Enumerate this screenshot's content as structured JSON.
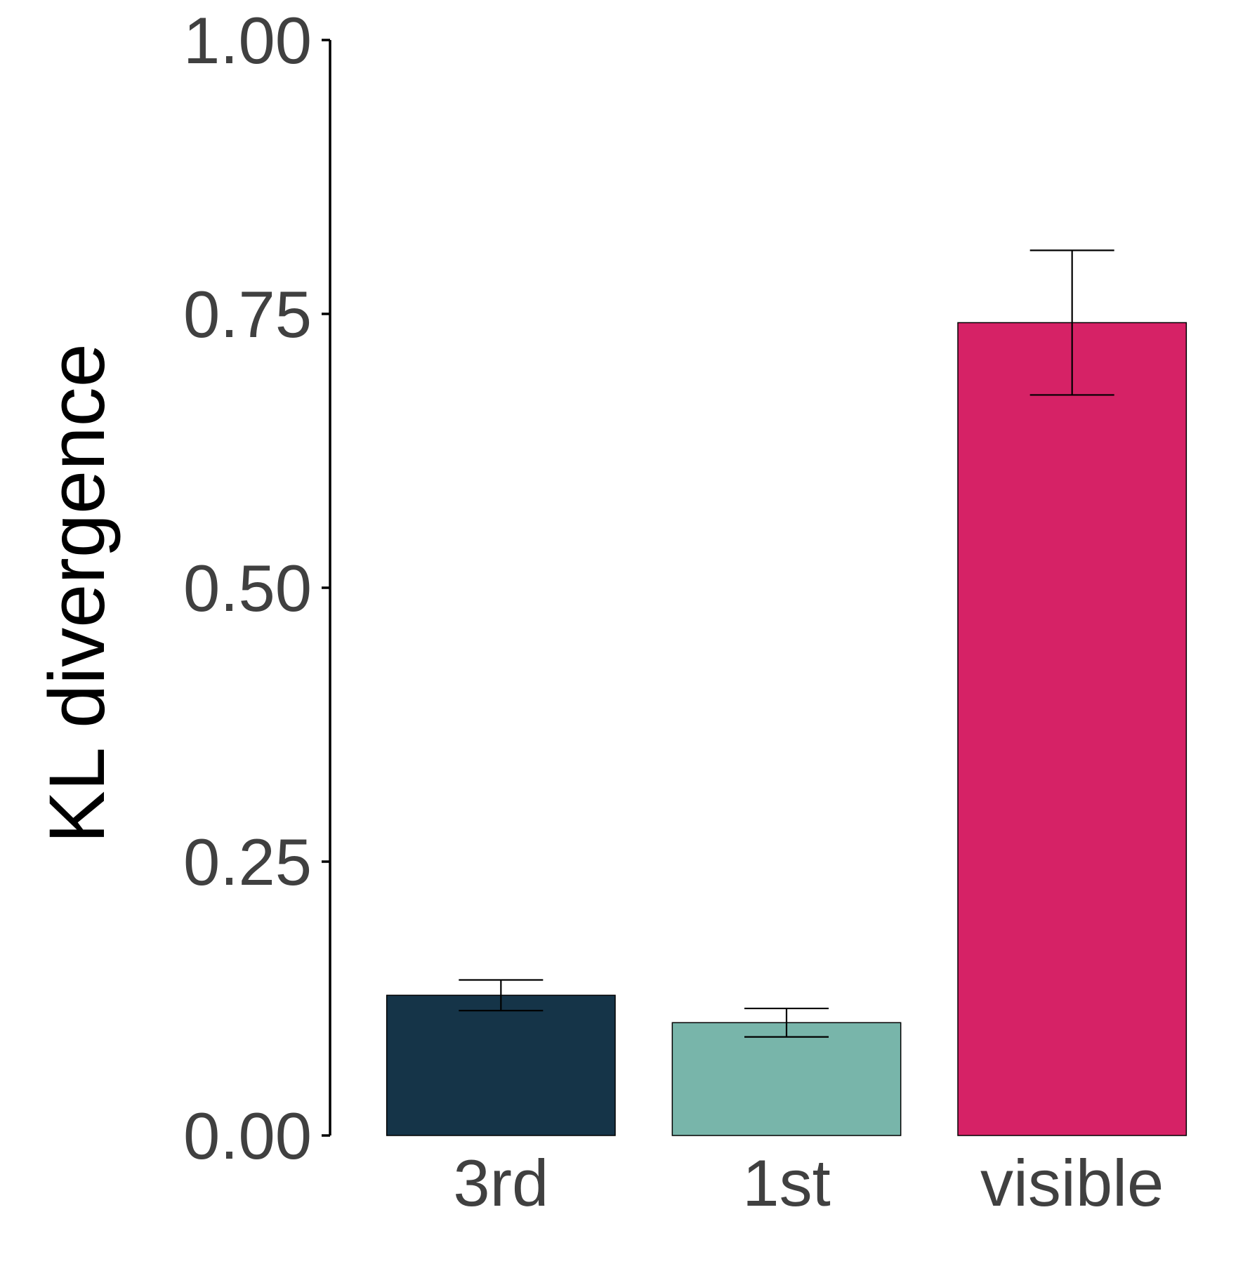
{
  "chart_data": {
    "type": "bar",
    "title": "",
    "xlabel": "",
    "ylabel": "KL divergence",
    "categories": [
      "3rd",
      "1st",
      "visible"
    ],
    "values": [
      0.128,
      0.103,
      0.742
    ],
    "error_bars": {
      "lower": [
        0.114,
        0.09,
        0.676
      ],
      "upper": [
        0.142,
        0.116,
        0.808
      ]
    },
    "colors": [
      "#153448",
      "#78B5AA",
      "#D62266"
    ],
    "ylim": [
      0,
      1
    ],
    "yticks": [
      0,
      0.25,
      0.5,
      0.75,
      1
    ],
    "ytick_labels": [
      "0.00",
      "0.25",
      "0.50",
      "0.75",
      "1.00"
    ],
    "grid": false,
    "legend": "none"
  }
}
